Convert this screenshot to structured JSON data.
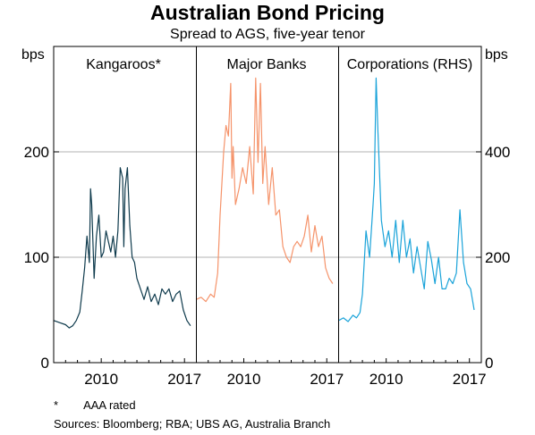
{
  "chart_data": {
    "type": "line",
    "title": "Australian Bond Pricing",
    "subtitle": "Spread to AGS, five-year tenor",
    "y_left_unit": "bps",
    "y_right_unit": "bps",
    "y_left_ticks": [
      "0",
      "100",
      "200"
    ],
    "y_right_ticks": [
      "0",
      "200",
      "400"
    ],
    "y_left_range": [
      0,
      300
    ],
    "y_right_range": [
      0,
      600
    ],
    "x_ticks": [
      "2010",
      "2017"
    ],
    "grid": true,
    "panels": [
      {
        "label": "Kangaroos*",
        "color": "#0e3a4c",
        "axis": "left",
        "x_range": [
          2006.0,
          2018.0
        ],
        "x": [
          2006.0,
          2006.5,
          2007.0,
          2007.3,
          2007.6,
          2007.9,
          2008.2,
          2008.4,
          2008.6,
          2008.8,
          2009.0,
          2009.1,
          2009.2,
          2009.4,
          2009.6,
          2009.8,
          2010.0,
          2010.2,
          2010.4,
          2010.6,
          2010.8,
          2011.0,
          2011.2,
          2011.4,
          2011.6,
          2011.8,
          2011.9,
          2012.0,
          2012.2,
          2012.4,
          2012.6,
          2012.8,
          2013.0,
          2013.3,
          2013.6,
          2013.9,
          2014.2,
          2014.5,
          2014.8,
          2015.1,
          2015.4,
          2015.7,
          2016.0,
          2016.3,
          2016.6,
          2016.9,
          2017.2,
          2017.5
        ],
        "values": [
          40,
          38,
          36,
          33,
          35,
          40,
          48,
          68,
          90,
          120,
          95,
          165,
          150,
          80,
          120,
          140,
          100,
          105,
          125,
          115,
          105,
          120,
          100,
          125,
          185,
          175,
          110,
          165,
          185,
          130,
          100,
          95,
          80,
          70,
          60,
          72,
          58,
          65,
          55,
          70,
          65,
          70,
          58,
          65,
          68,
          50,
          40,
          35
        ]
      },
      {
        "label": "Major Banks",
        "color": "#f5936a",
        "axis": "left",
        "x_range": [
          2006.0,
          2018.0
        ],
        "x": [
          2006.0,
          2006.4,
          2006.8,
          2007.2,
          2007.5,
          2007.8,
          2008.0,
          2008.3,
          2008.5,
          2008.7,
          2008.9,
          2009.0,
          2009.1,
          2009.3,
          2009.6,
          2009.9,
          2010.2,
          2010.5,
          2010.8,
          2011.0,
          2011.2,
          2011.4,
          2011.6,
          2011.8,
          2012.1,
          2012.4,
          2012.7,
          2013.0,
          2013.3,
          2013.6,
          2013.9,
          2014.2,
          2014.5,
          2014.8,
          2015.1,
          2015.4,
          2015.7,
          2016.0,
          2016.3,
          2016.6,
          2016.9,
          2017.2,
          2017.5
        ],
        "values": [
          60,
          62,
          58,
          65,
          62,
          85,
          140,
          200,
          225,
          215,
          265,
          175,
          205,
          150,
          165,
          185,
          170,
          205,
          160,
          270,
          190,
          265,
          170,
          205,
          150,
          185,
          140,
          145,
          110,
          100,
          95,
          110,
          115,
          110,
          120,
          140,
          105,
          130,
          110,
          120,
          90,
          80,
          75
        ]
      },
      {
        "label": "Corporations (RHS)",
        "color": "#1aa3d9",
        "axis": "right",
        "x_range": [
          2006.0,
          2018.0
        ],
        "x": [
          2006.0,
          2006.4,
          2006.8,
          2007.2,
          2007.5,
          2007.8,
          2008.0,
          2008.3,
          2008.6,
          2008.9,
          2009.0,
          2009.15,
          2009.3,
          2009.6,
          2009.9,
          2010.2,
          2010.5,
          2010.8,
          2011.1,
          2011.4,
          2011.7,
          2012.0,
          2012.3,
          2012.6,
          2012.9,
          2013.2,
          2013.5,
          2013.8,
          2014.1,
          2014.4,
          2014.7,
          2015.0,
          2015.3,
          2015.6,
          2015.9,
          2016.2,
          2016.5,
          2016.8,
          2017.1,
          2017.4
        ],
        "values": [
          80,
          85,
          78,
          90,
          85,
          95,
          130,
          250,
          200,
          300,
          340,
          540,
          440,
          270,
          220,
          250,
          200,
          270,
          190,
          270,
          200,
          235,
          170,
          220,
          180,
          140,
          230,
          195,
          150,
          200,
          140,
          140,
          160,
          150,
          170,
          290,
          190,
          150,
          140,
          100
        ]
      }
    ],
    "footnote": {
      "mark": "*",
      "text": "AAA rated"
    },
    "sources": "Sources:  Bloomberg; RBA; UBS AG, Australia Branch"
  }
}
